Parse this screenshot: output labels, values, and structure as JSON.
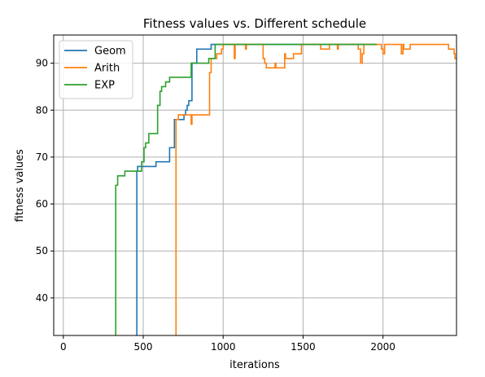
{
  "chart_data": {
    "type": "line",
    "title": "Fitness values  vs. Different schedule",
    "xlabel": "iterations",
    "ylabel": "fitness values",
    "xlim": [
      -60,
      2460
    ],
    "ylim": [
      32,
      96
    ],
    "xticks": [
      0,
      500,
      1000,
      1500,
      2000
    ],
    "yticks": [
      40,
      50,
      60,
      70,
      80,
      90
    ],
    "grid": true,
    "legend_position": "top-left",
    "series": [
      {
        "name": "Geom",
        "color": "#1f77b4",
        "points": [
          [
            460,
            32
          ],
          [
            460,
            67
          ],
          [
            465,
            67
          ],
          [
            465,
            68
          ],
          [
            580,
            68
          ],
          [
            580,
            69
          ],
          [
            665,
            69
          ],
          [
            665,
            72
          ],
          [
            695,
            72
          ],
          [
            695,
            78
          ],
          [
            755,
            78
          ],
          [
            755,
            79
          ],
          [
            765,
            79
          ],
          [
            765,
            80
          ],
          [
            775,
            80
          ],
          [
            775,
            81
          ],
          [
            785,
            81
          ],
          [
            785,
            82
          ],
          [
            805,
            82
          ],
          [
            805,
            90
          ],
          [
            835,
            90
          ],
          [
            835,
            93
          ],
          [
            925,
            93
          ],
          [
            925,
            94
          ],
          [
            1960,
            94
          ]
        ]
      },
      {
        "name": "Arith",
        "color": "#ff7f0e",
        "points": [
          [
            705,
            32
          ],
          [
            705,
            78
          ],
          [
            720,
            78
          ],
          [
            720,
            79
          ],
          [
            800,
            79
          ],
          [
            800,
            77
          ],
          [
            805,
            77
          ],
          [
            805,
            79
          ],
          [
            915,
            79
          ],
          [
            915,
            88
          ],
          [
            925,
            88
          ],
          [
            925,
            91
          ],
          [
            960,
            91
          ],
          [
            960,
            92
          ],
          [
            990,
            92
          ],
          [
            990,
            93
          ],
          [
            1000,
            93
          ],
          [
            1000,
            94
          ],
          [
            1070,
            94
          ],
          [
            1070,
            91
          ],
          [
            1075,
            91
          ],
          [
            1075,
            94
          ],
          [
            1140,
            94
          ],
          [
            1140,
            93
          ],
          [
            1145,
            93
          ],
          [
            1145,
            94
          ],
          [
            1250,
            94
          ],
          [
            1250,
            91
          ],
          [
            1260,
            91
          ],
          [
            1260,
            90
          ],
          [
            1270,
            90
          ],
          [
            1270,
            89
          ],
          [
            1325,
            89
          ],
          [
            1325,
            90
          ],
          [
            1330,
            90
          ],
          [
            1330,
            89
          ],
          [
            1385,
            89
          ],
          [
            1385,
            92
          ],
          [
            1390,
            92
          ],
          [
            1390,
            91
          ],
          [
            1440,
            91
          ],
          [
            1440,
            92
          ],
          [
            1490,
            92
          ],
          [
            1490,
            94
          ],
          [
            1610,
            94
          ],
          [
            1610,
            93
          ],
          [
            1665,
            93
          ],
          [
            1665,
            94
          ],
          [
            1715,
            94
          ],
          [
            1715,
            93
          ],
          [
            1720,
            93
          ],
          [
            1720,
            94
          ],
          [
            1845,
            94
          ],
          [
            1845,
            93
          ],
          [
            1860,
            93
          ],
          [
            1860,
            90
          ],
          [
            1870,
            90
          ],
          [
            1870,
            92
          ],
          [
            1880,
            92
          ],
          [
            1880,
            94
          ],
          [
            1990,
            94
          ],
          [
            1990,
            93
          ],
          [
            2000,
            93
          ],
          [
            2000,
            92
          ],
          [
            2010,
            92
          ],
          [
            2010,
            94
          ],
          [
            2115,
            94
          ],
          [
            2115,
            92
          ],
          [
            2125,
            92
          ],
          [
            2125,
            94
          ],
          [
            2130,
            94
          ],
          [
            2130,
            93
          ],
          [
            2170,
            93
          ],
          [
            2170,
            94
          ],
          [
            2410,
            94
          ],
          [
            2410,
            93
          ],
          [
            2445,
            93
          ],
          [
            2445,
            92
          ],
          [
            2450,
            92
          ],
          [
            2450,
            91
          ],
          [
            2460,
            91
          ]
        ]
      },
      {
        "name": "EXP",
        "color": "#2ca02c",
        "points": [
          [
            328,
            32
          ],
          [
            328,
            64
          ],
          [
            340,
            64
          ],
          [
            340,
            66
          ],
          [
            385,
            66
          ],
          [
            385,
            67
          ],
          [
            490,
            67
          ],
          [
            490,
            69
          ],
          [
            505,
            69
          ],
          [
            505,
            72
          ],
          [
            515,
            72
          ],
          [
            515,
            73
          ],
          [
            535,
            73
          ],
          [
            535,
            75
          ],
          [
            590,
            75
          ],
          [
            590,
            81
          ],
          [
            605,
            81
          ],
          [
            605,
            84
          ],
          [
            615,
            84
          ],
          [
            615,
            85
          ],
          [
            640,
            85
          ],
          [
            640,
            86
          ],
          [
            665,
            86
          ],
          [
            665,
            87
          ],
          [
            800,
            87
          ],
          [
            800,
            90
          ],
          [
            910,
            90
          ],
          [
            910,
            91
          ],
          [
            950,
            91
          ],
          [
            950,
            94
          ],
          [
            1960,
            94
          ]
        ]
      }
    ]
  }
}
